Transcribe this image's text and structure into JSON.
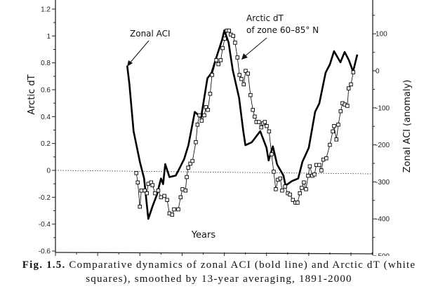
{
  "chart_data": {
    "type": "line",
    "xlabel": "Years",
    "ylabel": "Arctic dT",
    "ylabel_right": "Zonal ACI (anomaly)",
    "xlim": [
      1860,
      2010
    ],
    "ylim": [
      -0.6,
      1.25
    ],
    "ylim_right": [
      -500,
      200
    ],
    "x_ticks": [
      "1860",
      "1880",
      "1900",
      "1920",
      "1940",
      "1960",
      "1980",
      "2000"
    ],
    "y_ticks": [
      "1.2",
      "1",
      "0.8",
      "0.6",
      "0.4",
      "0.2",
      "0",
      "-0.2",
      "-0.4",
      "-0.6"
    ],
    "y_ticks_right": [
      "200",
      "100",
      "0",
      "-100",
      "-200",
      "-300",
      "-400",
      "-500"
    ],
    "grid": false,
    "reference_line": {
      "y": 0,
      "style": "dotted"
    },
    "annotations": [
      {
        "text": "Zonal ACI",
        "target": "aci"
      },
      {
        "text": "Arctic dT",
        "text2": "of zone 60–85° N",
        "target": "dt"
      }
    ],
    "series": [
      {
        "id": "aci",
        "axis": "right",
        "style": "bold line",
        "color": "#000000",
        "x": [
          1894,
          1895,
          1897,
          1900,
          1902,
          1904,
          1906,
          1908,
          1910,
          1911,
          1912,
          1914,
          1917,
          1919,
          1921,
          1923,
          1926,
          1929,
          1932,
          1934,
          1936,
          1939,
          1940,
          1942,
          1944,
          1947,
          1949,
          1950,
          1953,
          1955,
          1957,
          1960,
          1961,
          1963,
          1965,
          1968,
          1969,
          1972,
          1975,
          1977,
          1980,
          1983,
          1985,
          1988,
          1990,
          1992,
          1995,
          1997,
          1999,
          2001,
          2003
        ],
        "values": [
          14,
          -35,
          -163,
          -246,
          -291,
          -400,
          -366,
          -336,
          -291,
          -306,
          -252,
          -287,
          -283,
          -261,
          -238,
          -201,
          -111,
          -126,
          -20,
          -5,
          32,
          85,
          109,
          77,
          2,
          -73,
          -163,
          -201,
          -193,
          -178,
          -163,
          -208,
          -242,
          -204,
          -253,
          -283,
          -310,
          -298,
          -291,
          -246,
          -208,
          -111,
          -88,
          -5,
          17,
          53,
          23,
          51,
          29,
          -2,
          44
        ]
      },
      {
        "id": "dt",
        "axis": "left",
        "style": "thin line with white squares",
        "color": "#000000",
        "x": [
          1898.3,
          1899,
          1900,
          1900.7,
          1902.3,
          1903.3,
          1904,
          1905.3,
          1906,
          1907.2,
          1908.7,
          1910,
          1911.6,
          1912.9,
          1914,
          1915.3,
          1916.2,
          1918.2,
          1919.3,
          1920.2,
          1921.6,
          1922.2,
          1922.9,
          1923.9,
          1924.9,
          1926.5,
          1927.3,
          1928.2,
          1929.3,
          1930.5,
          1931.3,
          1932.2,
          1933.3,
          1934.2,
          1936.2,
          1937.2,
          1938.3,
          1939.2,
          1940.2,
          1941.2,
          1942.2,
          1943.1,
          1944.2,
          1945.1,
          1946.2,
          1947.2,
          1948.1,
          1949.2,
          1950.1,
          1951.2,
          1952.4,
          1953.5,
          1954.4,
          1955.2,
          1956.4,
          1957.5,
          1958.4,
          1959.2,
          1960.1,
          1961.2,
          1962.4,
          1963.4,
          1964.4,
          1965.4,
          1966.5,
          1967.4,
          1968.8,
          1970.1,
          1971.1,
          1972.5,
          1973.7,
          1974.7,
          1975.8,
          1976.7,
          1977.7,
          1978.7,
          1979.7,
          1980.5,
          1981.7,
          1982.7,
          1983.6,
          1985,
          1986,
          1986.9,
          1988.3,
          1990,
          1991.4,
          1992,
          1993.1,
          1994,
          1995.1,
          1996,
          1997.1,
          1998.3,
          1998.9,
          2000,
          2001.1
        ],
        "values": [
          -0.02,
          -0.09,
          -0.27,
          -0.15,
          -0.15,
          -0.17,
          -0.1,
          -0.09,
          -0.11,
          -0.17,
          -0.15,
          -0.2,
          -0.19,
          -0.22,
          -0.32,
          -0.33,
          -0.29,
          -0.29,
          -0.2,
          -0.14,
          -0.15,
          -0.05,
          0.02,
          0.05,
          0.07,
          0.21,
          0.34,
          0.41,
          0.37,
          0.41,
          0.47,
          0.45,
          0.57,
          0.71,
          0.82,
          0.79,
          0.82,
          0.91,
          0.98,
          1.04,
          1.04,
          1.01,
          1.0,
          0.95,
          0.84,
          0.71,
          0.68,
          0.64,
          0.74,
          0.72,
          0.56,
          0.45,
          0.4,
          0.36,
          0.36,
          0.32,
          0.35,
          0.36,
          0.33,
          0.29,
          0.12,
          -0.01,
          -0.14,
          -0.07,
          -0.06,
          -0.15,
          -0.12,
          -0.17,
          -0.18,
          -0.22,
          -0.24,
          -0.24,
          -0.17,
          -0.13,
          -0.09,
          -0.14,
          -0.04,
          0.03,
          -0.04,
          -0.03,
          0.04,
          0.04,
          0.0,
          0.08,
          0.09,
          0.19,
          0.29,
          0.33,
          0.23,
          0.34,
          0.44,
          0.5,
          0.49,
          0.48,
          0.61,
          0.64,
          0.73
        ]
      }
    ]
  },
  "caption": {
    "label": "Fig. 1.5.",
    "text": " Comparative dynamics of zonal ACI (bold line) and Arctic dT (white squares), smoothed by 13-year averaging, 1891-2000"
  }
}
